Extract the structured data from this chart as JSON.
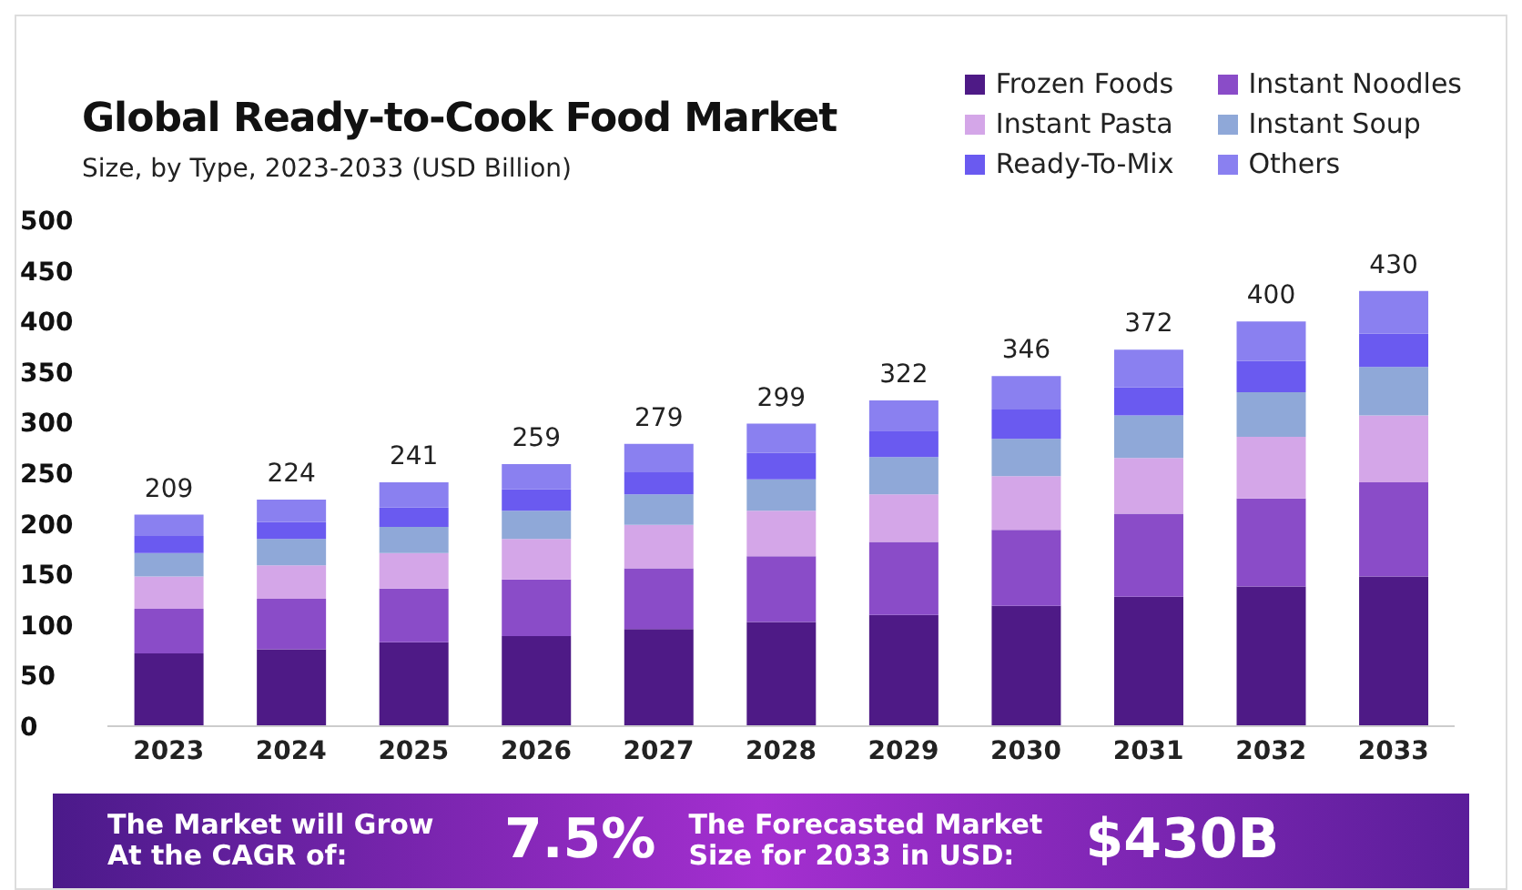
{
  "chart_data": {
    "type": "bar",
    "title": "Global Ready-to-Cook Food Market",
    "subtitle": "Size, by Type, 2023-2033 (USD Billion)",
    "categories": [
      "2023",
      "2024",
      "2025",
      "2026",
      "2027",
      "2028",
      "2029",
      "2030",
      "2031",
      "2032",
      "2033"
    ],
    "stacked": true,
    "ylim": [
      0,
      500
    ],
    "yticks": [
      0,
      50,
      100,
      150,
      200,
      250,
      300,
      350,
      400,
      450,
      500
    ],
    "grid": false,
    "legend": "top right",
    "series": [
      {
        "name": "Frozen Foods",
        "color": "#4e1a86",
        "values": [
          72,
          76,
          83,
          89,
          96,
          103,
          110,
          119,
          128,
          138,
          148
        ]
      },
      {
        "name": "Instant Noodles",
        "color": "#8a4cc8",
        "values": [
          44,
          50,
          53,
          56,
          60,
          65,
          72,
          75,
          82,
          87,
          93
        ]
      },
      {
        "name": "Instant Pasta",
        "color": "#d4a6e8",
        "values": [
          32,
          33,
          35,
          40,
          43,
          45,
          47,
          53,
          55,
          61,
          66
        ]
      },
      {
        "name": "Instant Soup",
        "color": "#8fa8d8",
        "values": [
          23,
          26,
          26,
          28,
          30,
          31,
          37,
          37,
          42,
          44,
          48
        ]
      },
      {
        "name": "Ready-To-Mix",
        "color": "#6a5af0",
        "values": [
          17,
          17,
          19,
          21,
          22,
          26,
          26,
          29,
          28,
          31,
          33
        ]
      },
      {
        "name": "Others",
        "color": "#8a80f0",
        "values": [
          21,
          22,
          25,
          25,
          28,
          29,
          30,
          33,
          37,
          39,
          42
        ]
      }
    ],
    "totals": [
      "209",
      "224",
      "241",
      "259",
      "279",
      "299",
      "322",
      "346",
      "372",
      "400",
      "430"
    ],
    "annotations": [
      "The Market will Grow At the CAGR of:",
      "7.5%",
      "The Forecasted Market Size for 2033 in USD:",
      "$430B"
    ]
  }
}
